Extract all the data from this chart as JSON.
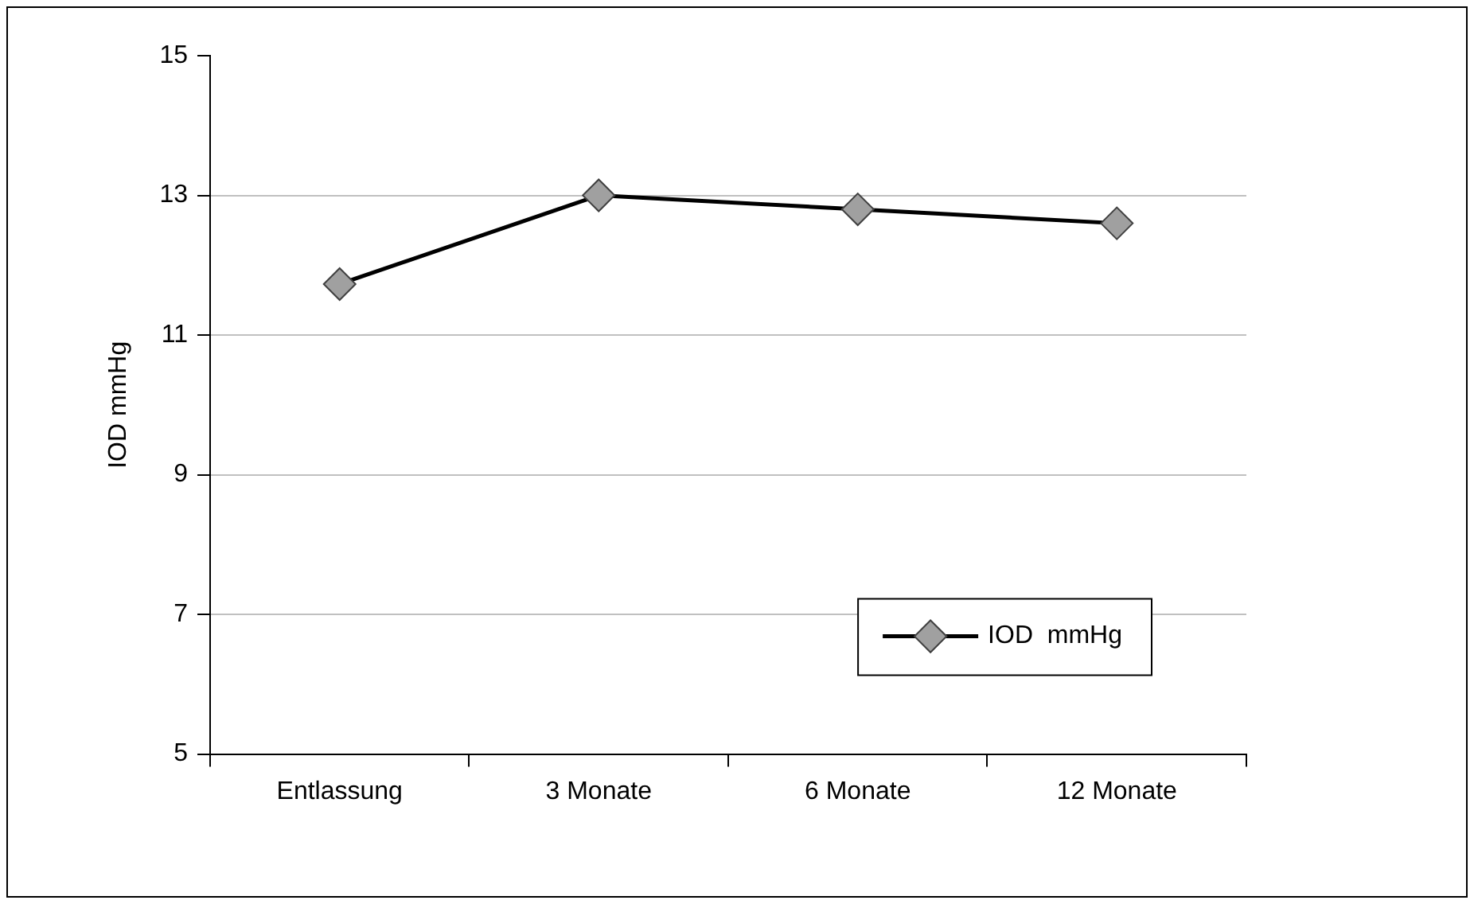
{
  "chart_data": {
    "type": "line",
    "ylabel": "IOD mmHg",
    "categories": [
      "Entlassung",
      "3 Monate",
      "6 Monate",
      "12 Monate"
    ],
    "series": [
      {
        "name": "IOD  mmHg",
        "color": "#000000",
        "values": [
          11.73,
          13.0,
          12.8,
          12.6
        ]
      }
    ],
    "ylim": [
      5,
      15
    ],
    "yticks": [
      5,
      7,
      9,
      11,
      13,
      15
    ],
    "grid": "y",
    "legend": "bottom right",
    "marker": "diamond",
    "line_style": "solid"
  }
}
